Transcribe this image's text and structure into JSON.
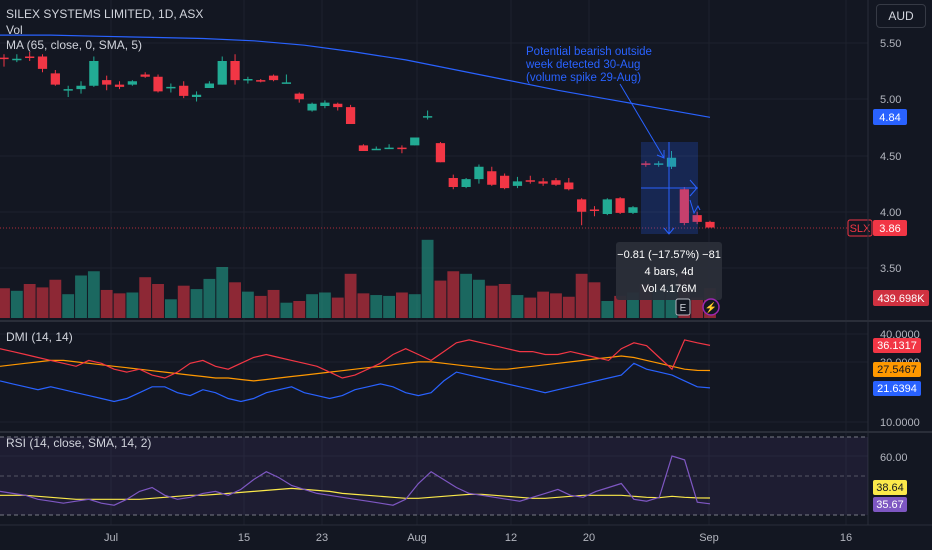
{
  "header": {
    "title": "SILEX SYSTEMS LIMITED, 1D, ASX",
    "vol_label": "Vol",
    "ma_label": "MA (65, close, 0, SMA, 5)",
    "currency": "AUD"
  },
  "price_axis": {
    "ticks": [
      "5.50",
      "5.00",
      "4.50",
      "4.00",
      "3.50"
    ],
    "ma_value": "4.84",
    "symbol": "SLX",
    "last_price": "3.86",
    "volume_value": "439.698K"
  },
  "annotation": {
    "lines": [
      "Potential bearish outside",
      "week detected 30-Aug",
      "(volume spike 29-Aug)"
    ]
  },
  "measure": {
    "change": "−0.81 (−17.57%) −81",
    "bars": "4 bars, 4d",
    "volume": "Vol 4.176M"
  },
  "dmi": {
    "label": "DMI (14, 14)",
    "ticks": [
      "40.0000",
      "30.0000",
      "10.0000"
    ],
    "values": [
      "36.1317",
      "27.5467",
      "21.6394"
    ],
    "colors": [
      "#f23645",
      "#ff9800",
      "#2962ff"
    ]
  },
  "rsi": {
    "label": "RSI (14, close, SMA, 14, 2)",
    "ticks": [
      "60.00"
    ],
    "values": [
      "38.64",
      "35.67"
    ],
    "colors": [
      "#fbe94a",
      "#7e57c2"
    ]
  },
  "time_axis": {
    "labels": [
      "Jul",
      "15",
      "23",
      "Aug",
      "12",
      "20",
      "Sep",
      "16"
    ]
  },
  "colors": {
    "up": "#22ab94",
    "down": "#f23645",
    "ma": "#2962ff",
    "background": "#131722"
  },
  "chart_data": {
    "type": "candlestick",
    "symbol": "SLX",
    "interval": "1D",
    "exchange": "ASX",
    "ylim": [
      3.3,
      5.65
    ],
    "candles": [
      {
        "o": 5.37,
        "h": 5.4,
        "l": 5.29,
        "c": 5.36
      },
      {
        "o": 5.36,
        "h": 5.4,
        "l": 5.33,
        "c": 5.36
      },
      {
        "o": 5.38,
        "h": 5.42,
        "l": 5.34,
        "c": 5.37
      },
      {
        "o": 5.38,
        "h": 5.4,
        "l": 5.24,
        "c": 5.27
      },
      {
        "o": 5.23,
        "h": 5.26,
        "l": 5.12,
        "c": 5.13
      },
      {
        "o": 5.09,
        "h": 5.12,
        "l": 5.02,
        "c": 5.09
      },
      {
        "o": 5.09,
        "h": 5.16,
        "l": 5.05,
        "c": 5.12
      },
      {
        "o": 5.12,
        "h": 5.38,
        "l": 5.11,
        "c": 5.34
      },
      {
        "o": 5.17,
        "h": 5.21,
        "l": 5.08,
        "c": 5.13
      },
      {
        "o": 5.13,
        "h": 5.16,
        "l": 5.09,
        "c": 5.11
      },
      {
        "o": 5.13,
        "h": 5.17,
        "l": 5.12,
        "c": 5.16
      },
      {
        "o": 5.22,
        "h": 5.24,
        "l": 5.19,
        "c": 5.2
      },
      {
        "o": 5.2,
        "h": 5.22,
        "l": 5.06,
        "c": 5.07
      },
      {
        "o": 5.1,
        "h": 5.14,
        "l": 5.06,
        "c": 5.11
      },
      {
        "o": 5.12,
        "h": 5.16,
        "l": 5.01,
        "c": 5.03
      },
      {
        "o": 5.02,
        "h": 5.07,
        "l": 4.98,
        "c": 5.04
      },
      {
        "o": 5.1,
        "h": 5.16,
        "l": 5.1,
        "c": 5.14
      },
      {
        "o": 5.13,
        "h": 5.38,
        "l": 5.13,
        "c": 5.34
      },
      {
        "o": 5.34,
        "h": 5.4,
        "l": 5.13,
        "c": 5.17
      },
      {
        "o": 5.17,
        "h": 5.2,
        "l": 5.14,
        "c": 5.18
      },
      {
        "o": 5.17,
        "h": 5.18,
        "l": 5.15,
        "c": 5.16
      },
      {
        "o": 5.21,
        "h": 5.22,
        "l": 5.16,
        "c": 5.17
      },
      {
        "o": 5.15,
        "h": 5.22,
        "l": 5.14,
        "c": 5.15
      },
      {
        "o": 5.05,
        "h": 5.06,
        "l": 4.97,
        "c": 5.0
      },
      {
        "o": 4.9,
        "h": 4.97,
        "l": 4.89,
        "c": 4.96
      },
      {
        "o": 4.94,
        "h": 4.99,
        "l": 4.92,
        "c": 4.97
      },
      {
        "o": 4.96,
        "h": 4.97,
        "l": 4.9,
        "c": 4.93
      },
      {
        "o": 4.93,
        "h": 4.95,
        "l": 4.78,
        "c": 4.78
      },
      {
        "o": 4.59,
        "h": 4.6,
        "l": 4.54,
        "c": 4.54
      },
      {
        "o": 4.55,
        "h": 4.58,
        "l": 4.55,
        "c": 4.56
      },
      {
        "o": 4.57,
        "h": 4.6,
        "l": 4.56,
        "c": 4.57
      },
      {
        "o": 4.57,
        "h": 4.59,
        "l": 4.52,
        "c": 4.56
      },
      {
        "o": 4.59,
        "h": 4.66,
        "l": 4.59,
        "c": 4.66
      },
      {
        "o": 4.84,
        "h": 4.9,
        "l": 4.82,
        "c": 4.85
      },
      {
        "o": 4.61,
        "h": 4.62,
        "l": 4.44,
        "c": 4.44
      },
      {
        "o": 4.3,
        "h": 4.33,
        "l": 4.2,
        "c": 4.22
      },
      {
        "o": 4.22,
        "h": 4.3,
        "l": 4.21,
        "c": 4.29
      },
      {
        "o": 4.29,
        "h": 4.42,
        "l": 4.25,
        "c": 4.4
      },
      {
        "o": 4.36,
        "h": 4.4,
        "l": 4.23,
        "c": 4.24
      },
      {
        "o": 4.32,
        "h": 4.34,
        "l": 4.2,
        "c": 4.21
      },
      {
        "o": 4.23,
        "h": 4.31,
        "l": 4.21,
        "c": 4.27
      },
      {
        "o": 4.28,
        "h": 4.32,
        "l": 4.25,
        "c": 4.27
      },
      {
        "o": 4.27,
        "h": 4.3,
        "l": 4.23,
        "c": 4.25
      },
      {
        "o": 4.28,
        "h": 4.3,
        "l": 4.23,
        "c": 4.24
      },
      {
        "o": 4.26,
        "h": 4.3,
        "l": 4.19,
        "c": 4.2
      },
      {
        "o": 4.11,
        "h": 4.12,
        "l": 3.88,
        "c": 4.0
      },
      {
        "o": 4.02,
        "h": 4.05,
        "l": 3.96,
        "c": 4.01
      },
      {
        "o": 3.98,
        "h": 4.12,
        "l": 3.97,
        "c": 4.11
      },
      {
        "o": 4.12,
        "h": 4.13,
        "l": 3.98,
        "c": 3.99
      },
      {
        "o": 3.99,
        "h": 4.05,
        "l": 3.98,
        "c": 4.04
      },
      {
        "o": 4.43,
        "h": 4.45,
        "l": 4.4,
        "c": 4.42
      },
      {
        "o": 4.42,
        "h": 4.45,
        "l": 4.4,
        "c": 4.43
      },
      {
        "o": 4.4,
        "h": 4.54,
        "l": 4.38,
        "c": 4.48
      },
      {
        "o": 4.2,
        "h": 4.22,
        "l": 3.88,
        "c": 3.9
      },
      {
        "o": 3.97,
        "h": 4.0,
        "l": 3.89,
        "c": 3.91
      },
      {
        "o": 3.91,
        "h": 3.92,
        "l": 3.86,
        "c": 3.86
      }
    ],
    "volume": [
      0.35,
      0.32,
      0.4,
      0.36,
      0.45,
      0.28,
      0.5,
      0.55,
      0.33,
      0.29,
      0.3,
      0.48,
      0.4,
      0.22,
      0.38,
      0.34,
      0.46,
      0.6,
      0.42,
      0.31,
      0.26,
      0.33,
      0.18,
      0.2,
      0.28,
      0.3,
      0.24,
      0.52,
      0.29,
      0.27,
      0.26,
      0.3,
      0.28,
      0.92,
      0.44,
      0.55,
      0.52,
      0.45,
      0.38,
      0.4,
      0.27,
      0.24,
      0.31,
      0.29,
      0.25,
      0.52,
      0.42,
      0.2,
      0.26,
      0.3,
      0.4,
      0.34,
      0.38,
      0.55,
      0.24,
      0.35
    ],
    "ma": [
      5.57,
      5.57,
      5.56,
      5.55,
      5.54,
      5.52,
      5.48,
      5.42,
      5.35,
      5.26,
      5.17,
      5.08,
      5.0,
      4.92,
      4.84
    ],
    "dmi": {
      "plus": [
        24,
        23,
        22,
        21,
        22,
        21,
        20,
        19,
        18,
        17,
        18,
        20,
        22,
        22,
        20,
        19,
        21,
        20,
        18,
        17,
        18,
        20,
        21,
        22,
        20,
        19,
        18,
        19,
        21,
        22,
        23,
        22,
        20,
        19,
        20,
        24,
        27,
        26,
        25,
        24,
        23,
        22,
        21,
        20,
        21,
        22,
        23,
        24,
        25,
        26,
        30,
        28,
        27,
        26,
        24,
        22,
        21.64
      ],
      "minus": [
        35,
        34,
        33,
        32,
        31,
        30,
        29,
        31,
        30,
        28,
        27,
        28,
        26,
        25,
        27,
        30,
        31,
        29,
        28,
        30,
        32,
        33,
        32,
        31,
        30,
        29,
        27,
        25,
        26,
        28,
        30,
        33,
        35,
        33,
        31,
        34,
        37,
        38,
        37,
        36,
        35,
        34,
        34,
        33,
        33,
        34,
        33,
        32,
        31,
        35,
        37,
        36,
        32,
        28,
        38,
        37,
        36.13
      ],
      "adx": [
        29,
        29.5,
        30,
        30.5,
        31,
        31,
        30.5,
        30,
        29.5,
        29,
        28.5,
        28,
        27.5,
        27,
        26.5,
        26,
        25.5,
        25,
        25,
        24.5,
        24,
        24.5,
        25,
        25.5,
        26,
        26.5,
        27,
        27.5,
        28,
        28.5,
        29,
        29.5,
        30,
        30.5,
        30.5,
        30,
        29.5,
        29,
        28.5,
        28,
        28,
        28.5,
        29,
        29.5,
        30,
        30.5,
        31,
        31.5,
        32,
        32.5,
        32,
        31,
        30,
        29,
        28,
        27.6,
        27.55
      ]
    },
    "rsi": {
      "rsi": [
        42,
        41,
        40,
        38,
        37,
        36,
        37,
        38,
        36,
        35,
        38,
        42,
        44,
        40,
        38,
        39,
        41,
        42,
        40,
        43,
        48,
        52,
        49,
        45,
        43,
        41,
        40,
        39,
        38,
        37,
        36,
        35,
        38,
        46,
        52,
        48,
        44,
        41,
        40,
        39,
        38,
        37,
        39,
        41,
        43,
        40,
        39,
        42,
        44,
        46,
        38,
        37,
        39,
        60,
        58,
        36.5,
        35.67
      ],
      "ma": [
        40,
        40,
        40,
        39.5,
        39,
        38.5,
        38,
        38,
        38,
        38,
        38,
        38,
        38.5,
        39,
        39.5,
        40,
        40,
        40.5,
        41,
        41.5,
        42,
        42.5,
        43,
        43.5,
        43,
        42.5,
        42,
        41,
        40.5,
        40,
        39.5,
        39,
        38.5,
        38.5,
        39,
        39.5,
        40,
        40.5,
        40.5,
        40,
        39.5,
        39,
        38.5,
        38.5,
        39,
        39.5,
        40,
        40,
        40,
        40,
        39.5,
        39,
        38.8,
        39.5,
        39,
        38.7,
        38.64
      ]
    }
  }
}
